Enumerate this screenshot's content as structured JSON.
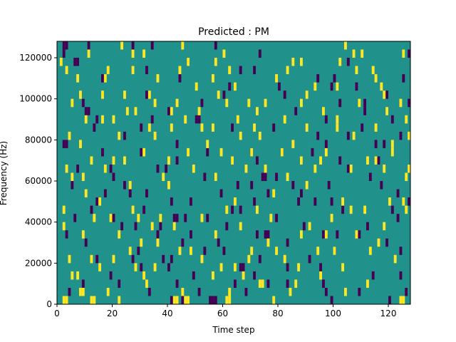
{
  "chart_data": {
    "type": "heatmap",
    "title": "Predicted : PM",
    "xlabel": "Time step",
    "ylabel": "Frequency (Hz)",
    "xlim": [
      0,
      128
    ],
    "ylim": [
      0,
      128000
    ],
    "x_ticks": [
      0,
      20,
      40,
      60,
      80,
      100,
      120
    ],
    "y_ticks": [
      0,
      20000,
      40000,
      60000,
      80000,
      100000,
      120000
    ],
    "x_tick_labels": [
      "0",
      "20",
      "40",
      "60",
      "80",
      "100",
      "120"
    ],
    "y_tick_labels": [
      "0",
      "20000",
      "40000",
      "60000",
      "80000",
      "100000",
      "120000"
    ],
    "grid": false,
    "colormap": "viridis",
    "colors": {
      "background": "#21918c",
      "high": "#fde725",
      "low": "#440154"
    },
    "cell_size": {
      "time_steps": 1,
      "hz": 4000
    },
    "high_cells": [
      [
        2,
        0
      ],
      [
        3,
        0
      ],
      [
        8,
        1
      ],
      [
        9,
        1
      ],
      [
        12,
        0
      ],
      [
        13,
        0
      ],
      [
        18,
        1
      ],
      [
        22,
        0
      ],
      [
        32,
        2
      ],
      [
        31,
        3
      ],
      [
        42,
        0
      ],
      [
        43,
        0
      ],
      [
        45,
        1
      ],
      [
        46,
        0
      ],
      [
        47,
        0
      ],
      [
        56,
        3
      ],
      [
        62,
        1
      ],
      [
        61,
        0
      ],
      [
        62,
        0
      ],
      [
        67,
        3
      ],
      [
        73,
        2
      ],
      [
        74,
        2
      ],
      [
        78,
        0
      ],
      [
        84,
        1
      ],
      [
        86,
        2
      ],
      [
        95,
        3
      ],
      [
        104,
        1
      ],
      [
        112,
        2
      ],
      [
        124,
        0
      ],
      [
        125,
        0
      ],
      [
        5,
        3
      ],
      [
        7,
        3
      ],
      [
        12,
        5
      ],
      [
        20,
        5
      ],
      [
        28,
        4
      ],
      [
        36,
        7
      ],
      [
        44,
        6
      ],
      [
        52,
        5
      ],
      [
        64,
        4
      ],
      [
        70,
        6
      ],
      [
        82,
        5
      ],
      [
        88,
        8
      ],
      [
        100,
        6
      ],
      [
        116,
        7
      ],
      [
        13,
        10
      ],
      [
        19,
        10
      ],
      [
        29,
        10
      ],
      [
        34,
        9
      ],
      [
        52,
        10
      ],
      [
        64,
        12
      ],
      [
        72,
        11
      ],
      [
        78,
        13
      ],
      [
        90,
        14
      ],
      [
        103,
        12
      ],
      [
        111,
        11
      ],
      [
        120,
        12
      ],
      [
        2,
        11
      ],
      [
        27,
        11
      ],
      [
        37,
        10
      ],
      [
        61,
        11
      ],
      [
        77,
        10
      ],
      [
        99,
        10
      ],
      [
        106,
        11
      ],
      [
        126,
        11
      ],
      [
        125,
        12
      ],
      [
        9,
        15
      ],
      [
        17,
        16
      ],
      [
        26,
        14
      ],
      [
        38,
        15
      ],
      [
        49,
        16
      ],
      [
        57,
        15
      ],
      [
        68,
        16
      ],
      [
        83,
        15
      ],
      [
        95,
        17
      ],
      [
        106,
        16
      ],
      [
        115,
        17
      ],
      [
        126,
        15
      ],
      [
        10,
        13
      ],
      [
        2,
        9
      ],
      [
        5,
        15
      ],
      [
        15,
        12
      ],
      [
        40,
        14
      ],
      [
        59,
        18
      ],
      [
        85,
        19
      ],
      [
        97,
        18
      ],
      [
        112,
        17
      ],
      [
        127,
        16
      ],
      [
        3,
        16
      ],
      [
        20,
        17
      ],
      [
        31,
        18
      ],
      [
        47,
        18
      ],
      [
        75,
        16
      ],
      [
        93,
        16
      ],
      [
        121,
        18
      ],
      [
        12,
        17
      ],
      [
        24,
        17
      ],
      [
        40,
        17
      ],
      [
        54,
        19
      ],
      [
        63,
        17
      ],
      [
        70,
        18
      ],
      [
        81,
        18
      ],
      [
        88,
        17
      ],
      [
        118,
        16
      ],
      [
        4,
        20
      ],
      [
        22,
        20
      ],
      [
        35,
        20
      ],
      [
        41,
        21
      ],
      [
        52,
        21
      ],
      [
        56,
        21
      ],
      [
        66,
        20
      ],
      [
        71,
        21
      ],
      [
        90,
        21
      ],
      [
        101,
        22
      ],
      [
        115,
        21
      ],
      [
        127,
        20
      ],
      [
        10,
        22
      ],
      [
        28,
        23
      ],
      [
        41,
        23
      ],
      [
        51,
        23
      ],
      [
        61,
        24
      ],
      [
        69,
        24
      ],
      [
        82,
        22
      ],
      [
        96,
        23
      ],
      [
        109,
        24
      ],
      [
        119,
        23
      ],
      [
        126,
        22
      ],
      [
        16,
        25
      ],
      [
        24,
        25
      ],
      [
        33,
        25
      ],
      [
        43,
        24
      ],
      [
        58,
        25
      ],
      [
        75,
        24
      ],
      [
        88,
        24
      ],
      [
        101,
        26
      ],
      [
        7,
        27
      ],
      [
        17,
        27
      ],
      [
        36,
        27
      ],
      [
        44,
        28
      ],
      [
        56,
        27
      ],
      [
        64,
        26
      ],
      [
        79,
        27
      ],
      [
        93,
        26
      ],
      [
        108,
        28
      ],
      [
        3,
        28
      ],
      [
        18,
        28
      ],
      [
        27,
        28
      ],
      [
        47,
        29
      ],
      [
        62,
        28
      ],
      [
        83,
        28
      ],
      [
        114,
        28
      ],
      [
        125,
        30
      ],
      [
        23,
        31
      ],
      [
        31,
        30
      ],
      [
        5,
        24
      ],
      [
        80,
        32
      ],
      [
        98,
        32
      ],
      [
        104,
        31
      ],
      [
        8,
        25
      ],
      [
        20,
        22
      ],
      [
        25,
        23
      ],
      [
        65,
        22
      ],
      [
        73,
        20
      ],
      [
        107,
        20
      ],
      [
        121,
        19
      ],
      [
        115,
        27
      ],
      [
        117,
        26
      ],
      [
        16,
        22
      ],
      [
        33,
        21
      ],
      [
        46,
        22
      ],
      [
        50,
        26
      ],
      [
        85,
        29
      ],
      [
        90,
        25
      ],
      [
        102,
        29
      ],
      [
        110,
        30
      ],
      [
        118,
        25
      ],
      [
        124,
        24
      ],
      [
        4,
        5
      ],
      [
        15,
        4
      ],
      [
        26,
        6
      ],
      [
        35,
        4
      ],
      [
        48,
        6
      ],
      [
        59,
        4
      ],
      [
        69,
        5
      ],
      [
        79,
        6
      ],
      [
        87,
        4
      ],
      [
        94,
        6
      ],
      [
        103,
        4
      ],
      [
        113,
        6
      ],
      [
        122,
        5
      ],
      [
        9,
        8
      ],
      [
        22,
        8
      ],
      [
        30,
        7
      ],
      [
        42,
        9
      ],
      [
        57,
        8
      ],
      [
        66,
        9
      ],
      [
        76,
        7
      ],
      [
        91,
        9
      ],
      [
        97,
        8
      ],
      [
        108,
        8
      ],
      [
        118,
        9
      ],
      [
        1,
        29
      ],
      [
        11,
        30
      ],
      [
        27,
        30
      ],
      [
        45,
        31
      ],
      [
        60,
        30
      ],
      [
        88,
        29
      ],
      [
        107,
        30
      ],
      [
        128,
        30
      ],
      [
        35,
        24
      ],
      [
        8,
        19
      ],
      [
        57,
        29
      ],
      [
        72,
        23
      ],
      [
        101,
        21
      ]
    ],
    "low_cells": [
      [
        2,
        31
      ],
      [
        3,
        31
      ],
      [
        6,
        29
      ],
      [
        7,
        29
      ],
      [
        10,
        23
      ],
      [
        11,
        23
      ],
      [
        14,
        22
      ],
      [
        19,
        16
      ],
      [
        26,
        13
      ],
      [
        24,
        14
      ],
      [
        28,
        9
      ],
      [
        42,
        10
      ],
      [
        43,
        10
      ],
      [
        50,
        22
      ],
      [
        51,
        22
      ],
      [
        58,
        7
      ],
      [
        64,
        2
      ],
      [
        70,
        14
      ],
      [
        74,
        15
      ],
      [
        75,
        15
      ],
      [
        88,
        13
      ],
      [
        94,
        27
      ],
      [
        99,
        26
      ],
      [
        100,
        27
      ],
      [
        111,
        24
      ],
      [
        115,
        19
      ],
      [
        119,
        25
      ],
      [
        127,
        24
      ],
      [
        128,
        24
      ],
      [
        2,
        19
      ],
      [
        3,
        19
      ],
      [
        16,
        18
      ],
      [
        30,
        18
      ],
      [
        43,
        17
      ],
      [
        54,
        18
      ],
      [
        63,
        17
      ],
      [
        70,
        18
      ],
      [
        81,
        18
      ],
      [
        88,
        17
      ],
      [
        105,
        20
      ],
      [
        118,
        19
      ],
      [
        7,
        16
      ],
      [
        20,
        15
      ],
      [
        32,
        13
      ],
      [
        41,
        12
      ],
      [
        57,
        15
      ],
      [
        66,
        11
      ],
      [
        79,
        10
      ],
      [
        85,
        14
      ],
      [
        93,
        12
      ],
      [
        103,
        11
      ],
      [
        121,
        11
      ],
      [
        127,
        12
      ],
      [
        5,
        14
      ],
      [
        14,
        12
      ],
      [
        23,
        9
      ],
      [
        36,
        8
      ],
      [
        46,
        10
      ],
      [
        61,
        9
      ],
      [
        72,
        8
      ],
      [
        75,
        8
      ],
      [
        76,
        8
      ],
      [
        83,
        7
      ],
      [
        89,
        9
      ],
      [
        96,
        8
      ],
      [
        109,
        8
      ],
      [
        124,
        6
      ],
      [
        40,
        4
      ],
      [
        41,
        5
      ],
      [
        49,
        3
      ],
      [
        55,
        0
      ],
      [
        56,
        0
      ],
      [
        57,
        0
      ],
      [
        45,
        0
      ],
      [
        42,
        0
      ],
      [
        41,
        0
      ],
      [
        4,
        1
      ],
      [
        22,
        2
      ],
      [
        33,
        1
      ],
      [
        43,
        2
      ],
      [
        51,
        1
      ],
      [
        68,
        1
      ],
      [
        76,
        2
      ],
      [
        96,
        2
      ],
      [
        97,
        1
      ],
      [
        99,
        0
      ],
      [
        109,
        1
      ],
      [
        120,
        0
      ],
      [
        124,
        3
      ],
      [
        2,
        30
      ],
      [
        11,
        31
      ],
      [
        27,
        31
      ],
      [
        34,
        31
      ],
      [
        47,
        29
      ],
      [
        57,
        31
      ],
      [
        73,
        30
      ],
      [
        105,
        29
      ],
      [
        127,
        30
      ],
      [
        24,
        20
      ],
      [
        43,
        19
      ],
      [
        30,
        21
      ],
      [
        63,
        21
      ],
      [
        78,
        21
      ],
      [
        97,
        19
      ],
      [
        105,
        16
      ],
      [
        111,
        23
      ],
      [
        116,
        17
      ],
      [
        124,
        20
      ],
      [
        128,
        16
      ],
      [
        16,
        27
      ],
      [
        44,
        27
      ],
      [
        52,
        24
      ],
      [
        62,
        26
      ],
      [
        82,
        25
      ],
      [
        97,
        22
      ],
      [
        102,
        24
      ],
      [
        6,
        10
      ],
      [
        12,
        11
      ],
      [
        17,
        13
      ],
      [
        31,
        11
      ],
      [
        37,
        9
      ],
      [
        48,
        12
      ],
      [
        54,
        10
      ],
      [
        63,
        11
      ],
      [
        71,
        12
      ],
      [
        79,
        15
      ],
      [
        87,
        12
      ],
      [
        98,
        14
      ],
      [
        113,
        15
      ],
      [
        123,
        13
      ],
      [
        9,
        2
      ],
      [
        14,
        5
      ],
      [
        19,
        3
      ],
      [
        29,
        6
      ],
      [
        38,
        5
      ],
      [
        45,
        7
      ],
      [
        60,
        6
      ],
      [
        71,
        3
      ],
      [
        83,
        4
      ],
      [
        95,
        4
      ],
      [
        100,
        6
      ],
      [
        114,
        3
      ],
      [
        126,
        1
      ],
      [
        3,
        8
      ],
      [
        10,
        7
      ],
      [
        27,
        5
      ],
      [
        48,
        8
      ],
      [
        53,
        6
      ],
      [
        67,
        4
      ],
      [
        73,
        5
      ],
      [
        91,
        5
      ],
      [
        101,
        8
      ],
      [
        112,
        9
      ],
      [
        119,
        7
      ],
      [
        32,
        25
      ],
      [
        40,
        23
      ],
      [
        60,
        25
      ],
      [
        66,
        28
      ],
      [
        86,
        23
      ],
      [
        108,
        26
      ],
      [
        125,
        27
      ],
      [
        9,
        24
      ],
      [
        13,
        21
      ],
      [
        36,
        16
      ],
      [
        53,
        15
      ],
      [
        65,
        14
      ],
      [
        76,
        13
      ],
      [
        92,
        18
      ],
      [
        102,
        17
      ],
      [
        117,
        14
      ],
      [
        121,
        22
      ],
      [
        32,
        28
      ],
      [
        71,
        28
      ],
      [
        80,
        26
      ],
      [
        34,
        22
      ],
      [
        72,
        17
      ],
      [
        39,
        16
      ],
      [
        59,
        13
      ],
      [
        94,
        20
      ],
      [
        110,
        21
      ],
      [
        99,
        12
      ],
      [
        123,
        10
      ],
      [
        20,
        10
      ],
      [
        30,
        4
      ],
      [
        66,
        4
      ],
      [
        83,
        2
      ]
    ]
  }
}
